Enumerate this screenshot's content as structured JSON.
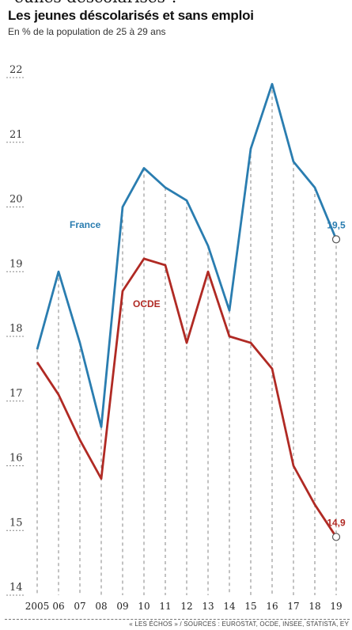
{
  "header": {
    "clipped_text": "eunes déscolarisés ?",
    "title": "Les jeunes déscolarisés et sans emploi",
    "subtitle": "En % de la population de 25 à 29 ans"
  },
  "footer": {
    "source": "« LES ÉCHOS » / SOURCES : EUROSTAT, OCDE, INSEE, STATISTA, EY"
  },
  "chart_data": {
    "type": "line",
    "title": "Les jeunes déscolarisés et sans emploi",
    "subtitle": "En % de la population de 25 à 29 ans",
    "categories": [
      "2005",
      "06",
      "07",
      "08",
      "09",
      "10",
      "11",
      "12",
      "13",
      "14",
      "15",
      "16",
      "17",
      "18",
      "19"
    ],
    "ylim": [
      14,
      22
    ],
    "yticks": [
      "22",
      "21",
      "20",
      "19",
      "18",
      "17",
      "16",
      "15",
      "14"
    ],
    "series": [
      {
        "name": "France",
        "color": "#2a7db0",
        "values": [
          17.8,
          19.0,
          17.9,
          16.6,
          20.0,
          20.6,
          20.3,
          20.1,
          19.4,
          18.4,
          20.9,
          21.9,
          20.7,
          20.3,
          19.5
        ],
        "end_label": "19,5"
      },
      {
        "name": "OCDE",
        "color": "#b02a24",
        "values": [
          17.6,
          17.1,
          16.4,
          15.8,
          18.7,
          19.2,
          19.1,
          17.9,
          19.0,
          18.0,
          17.9,
          17.5,
          16.0,
          15.4,
          14.9
        ],
        "end_label": "14,9"
      }
    ],
    "grid": "dashed vertical per category"
  }
}
